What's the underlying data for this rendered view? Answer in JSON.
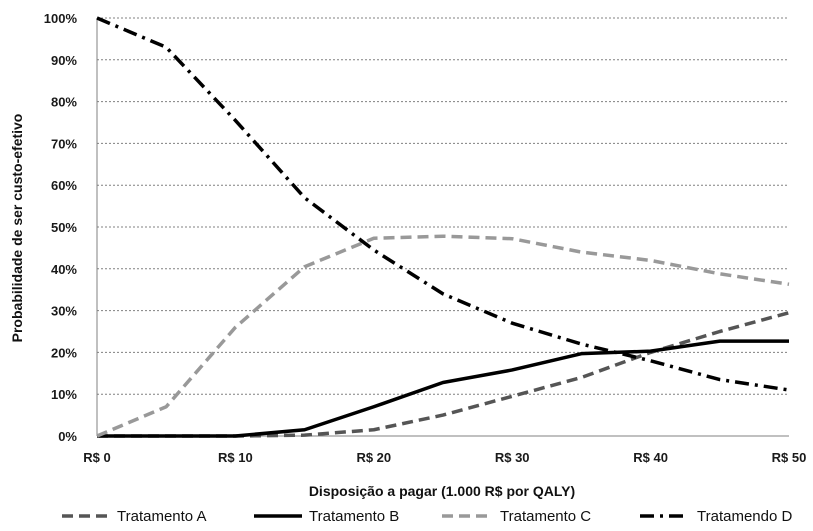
{
  "chart_data": {
    "type": "line",
    "xlabel": "Disposição a pagar (1.000 R$ por QALY)",
    "ylabel": "Probabilidade de ser custo-efetivo",
    "x": [
      0,
      5,
      10,
      15,
      20,
      25,
      30,
      35,
      40,
      45,
      50
    ],
    "x_tick_labels": [
      "R$ 0",
      "R$ 10",
      "R$ 20",
      "R$ 30",
      "R$ 40",
      "R$ 50"
    ],
    "x_ticks": [
      0,
      10,
      20,
      30,
      40,
      50
    ],
    "y_tick_labels": [
      "0%",
      "10%",
      "20%",
      "30%",
      "40%",
      "50%",
      "60%",
      "70%",
      "80%",
      "90%",
      "100%"
    ],
    "y_ticks": [
      0,
      10,
      20,
      30,
      40,
      50,
      60,
      70,
      80,
      90,
      100
    ],
    "xlim": [
      0,
      50
    ],
    "ylim": [
      0,
      100
    ],
    "grid": "horizontal dashed",
    "legend_position": "bottom",
    "series": [
      {
        "name": "Tratamento A",
        "color": "#555555",
        "style": "dashed",
        "values": [
          0,
          0,
          0,
          0.2,
          1.5,
          5,
          9.5,
          14,
          20,
          25,
          29.5
        ]
      },
      {
        "name": "Tratamento B",
        "color": "#000000",
        "style": "solid",
        "values": [
          0,
          0,
          0,
          1.5,
          7,
          12.8,
          15.8,
          19.7,
          20.3,
          22.7,
          22.7
        ]
      },
      {
        "name": "Tratamento C",
        "color": "#999999",
        "style": "dashed",
        "values": [
          0,
          7,
          26,
          40.5,
          47.3,
          47.8,
          47.2,
          44,
          42,
          38.8,
          36.3
        ]
      },
      {
        "name": "Tratamendo D",
        "color": "#000000",
        "style": "dash-dot",
        "values": [
          100,
          93,
          75.5,
          57,
          44.5,
          34,
          27,
          22,
          18,
          13.5,
          11
        ]
      }
    ]
  }
}
